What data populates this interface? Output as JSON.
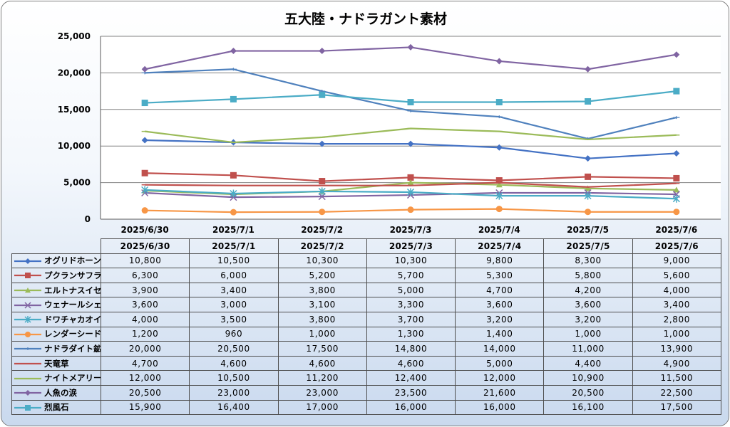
{
  "chart_data": {
    "type": "line",
    "title": "五大陸・ナドラガント素材",
    "xlabel": "",
    "ylabel": "",
    "categories": [
      "2025/6/30",
      "2025/7/1",
      "2025/7/2",
      "2025/7/3",
      "2025/7/4",
      "2025/7/5",
      "2025/7/6"
    ],
    "ylim": [
      0,
      25000
    ],
    "yticks": [
      0,
      5000,
      10000,
      15000,
      20000,
      25000
    ],
    "ytick_labels": [
      "0",
      "5,000",
      "10,000",
      "15,000",
      "20,000",
      "25,000"
    ],
    "grid": "horizontal",
    "legend": "data table below chart",
    "series": [
      {
        "name": "オグリドホーン",
        "color": "#4472c4",
        "marker": "diamond",
        "values": [
          10800,
          10500,
          10300,
          10300,
          9800,
          8300,
          9000
        ],
        "labels": [
          "10,800",
          "10,500",
          "10,300",
          "10,300",
          "9,800",
          "8,300",
          "9,000"
        ]
      },
      {
        "name": "プクランサフラン",
        "color": "#c0504d",
        "marker": "square",
        "values": [
          6300,
          6000,
          5200,
          5700,
          5300,
          5800,
          5600
        ],
        "labels": [
          "6,300",
          "6,000",
          "5,200",
          "5,700",
          "5,300",
          "5,800",
          "5,600"
        ]
      },
      {
        "name": "エルトナスイセン",
        "color": "#9bbb59",
        "marker": "triangle",
        "values": [
          3900,
          3400,
          3800,
          5000,
          4700,
          4200,
          4000
        ],
        "labels": [
          "3,900",
          "3,400",
          "3,800",
          "5,000",
          "4,700",
          "4,200",
          "4,000"
        ]
      },
      {
        "name": "ウェナールシェル",
        "color": "#8064a2",
        "marker": "x",
        "values": [
          3600,
          3000,
          3100,
          3300,
          3600,
          3600,
          3400
        ],
        "labels": [
          "3,600",
          "3,000",
          "3,100",
          "3,300",
          "3,600",
          "3,600",
          "3,400"
        ]
      },
      {
        "name": "ドワチャカオイル",
        "color": "#4bacc6",
        "marker": "star",
        "values": [
          4000,
          3500,
          3800,
          3700,
          3200,
          3200,
          2800
        ],
        "labels": [
          "4,000",
          "3,500",
          "3,800",
          "3,700",
          "3,200",
          "3,200",
          "2,800"
        ]
      },
      {
        "name": "レンダーシード",
        "color": "#f79646",
        "marker": "circle",
        "values": [
          1200,
          960,
          1000,
          1300,
          1400,
          1000,
          1000
        ],
        "labels": [
          "1,200",
          "960",
          "1,000",
          "1,300",
          "1,400",
          "1,000",
          "1,000"
        ]
      },
      {
        "name": "ナドラダイト鉱石",
        "color": "#4f81bd",
        "marker": "plus",
        "values": [
          20000,
          20500,
          17500,
          14800,
          14000,
          11000,
          13900
        ],
        "labels": [
          "20,000",
          "20,500",
          "17,500",
          "14,800",
          "14,000",
          "11,000",
          "13,900"
        ]
      },
      {
        "name": "天竜草",
        "color": "#c0504d",
        "marker": "dash",
        "values": [
          4700,
          4600,
          4600,
          4600,
          5000,
          4400,
          4900
        ],
        "labels": [
          "4,700",
          "4,600",
          "4,600",
          "4,600",
          "5,000",
          "4,400",
          "4,900"
        ]
      },
      {
        "name": "ナイトメアリーフ",
        "color": "#9bbb59",
        "marker": "dash",
        "values": [
          12000,
          10500,
          11200,
          12400,
          12000,
          10900,
          11500
        ],
        "labels": [
          "12,000",
          "10,500",
          "11,200",
          "12,400",
          "12,000",
          "10,900",
          "11,500"
        ]
      },
      {
        "name": "人魚の涙",
        "color": "#8064a2",
        "marker": "diamond",
        "values": [
          20500,
          23000,
          23000,
          23500,
          21600,
          20500,
          22500
        ],
        "labels": [
          "20,500",
          "23,000",
          "23,000",
          "23,500",
          "21,600",
          "20,500",
          "22,500"
        ]
      },
      {
        "name": "烈風石",
        "color": "#4bacc6",
        "marker": "square",
        "values": [
          15900,
          16400,
          17000,
          16000,
          16000,
          16100,
          17500
        ],
        "labels": [
          "15,900",
          "16,400",
          "17,000",
          "16,000",
          "16,000",
          "16,100",
          "17,500"
        ]
      }
    ]
  }
}
